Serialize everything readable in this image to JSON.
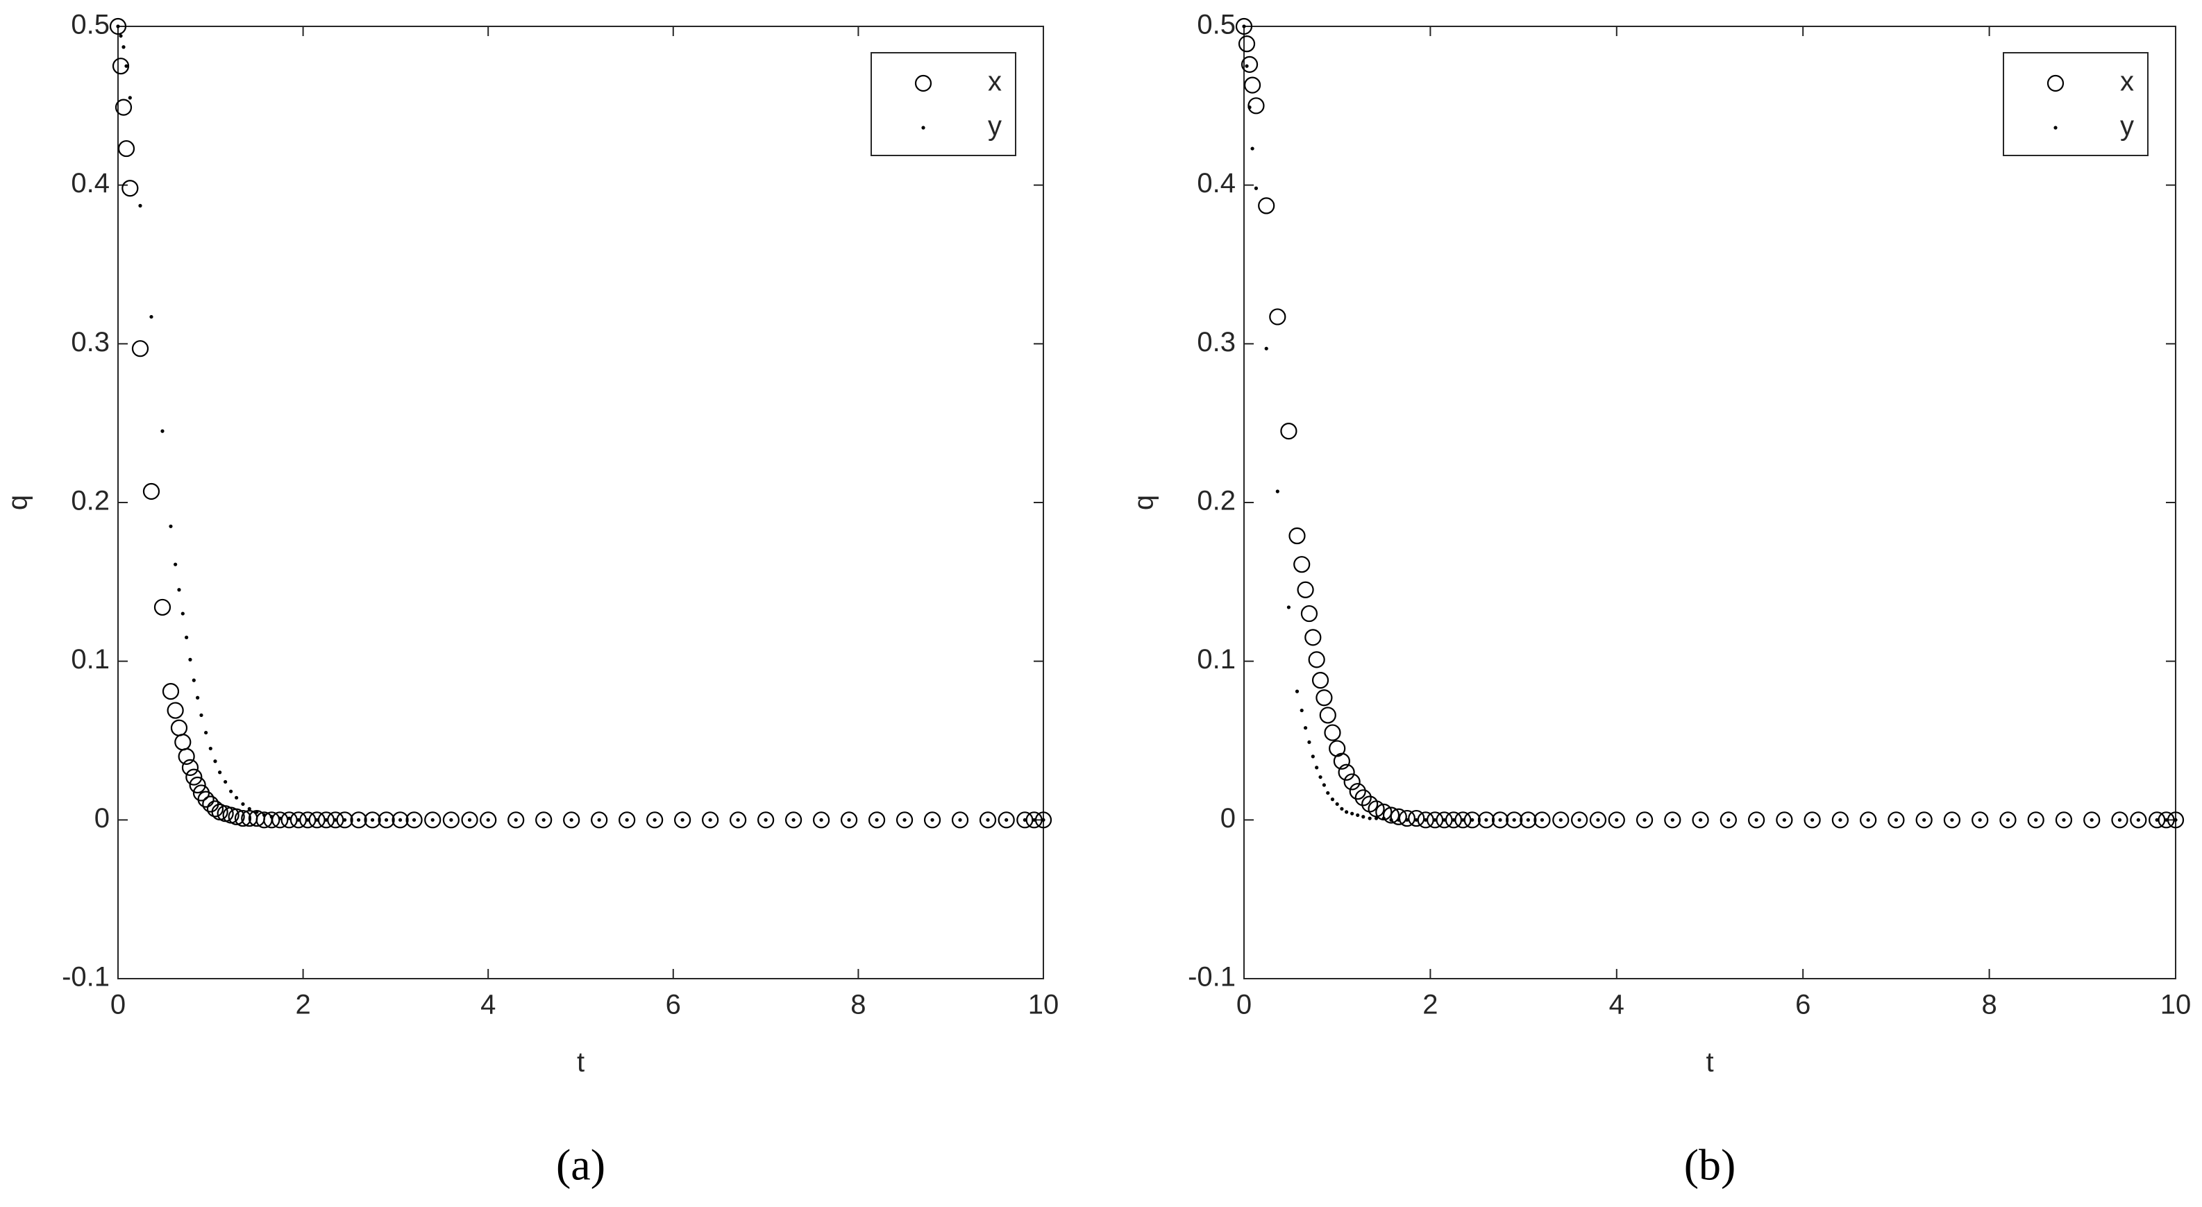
{
  "chart_data": [
    {
      "type": "scatter",
      "label": "(a)",
      "x_label": "t",
      "y_label": "q",
      "x": [
        0,
        0.03,
        0.06,
        0.09,
        0.13,
        0.24,
        0.36,
        0.48,
        0.57,
        0.62,
        0.66,
        0.7,
        0.74,
        0.78,
        0.82,
        0.86,
        0.9,
        0.95,
        1.0,
        1.05,
        1.1,
        1.16,
        1.22,
        1.28,
        1.35,
        1.42,
        1.5,
        1.58,
        1.66,
        1.75,
        1.85,
        1.95,
        2.05,
        2.15,
        2.25,
        2.35,
        2.45,
        2.6,
        2.75,
        2.9,
        3.05,
        3.2,
        3.4,
        3.6,
        3.8,
        4.0,
        4.3,
        4.6,
        4.9,
        5.2,
        5.5,
        5.8,
        6.1,
        6.4,
        6.7,
        7.0,
        7.3,
        7.6,
        7.9,
        8.2,
        8.5,
        8.8,
        9.1,
        9.4,
        9.6,
        9.8,
        9.9,
        10
      ],
      "series": [
        {
          "name": "x",
          "marker": "circle",
          "color": "#000000",
          "values": [
            0.5,
            0.475,
            0.449,
            0.423,
            0.398,
            0.297,
            0.207,
            0.134,
            0.081,
            0.069,
            0.058,
            0.049,
            0.04,
            0.033,
            0.027,
            0.022,
            0.017,
            0.013,
            0.01,
            0.007,
            0.005,
            0.004,
            0.003,
            0.002,
            0.001,
            0.001,
            0.001,
            0,
            0,
            0,
            0,
            0,
            0,
            0,
            0,
            0,
            0,
            0,
            0,
            0,
            0,
            0,
            0,
            0,
            0,
            0,
            0,
            0,
            0,
            0,
            0,
            0,
            0,
            0,
            0,
            0,
            0,
            0,
            0,
            0,
            0,
            0,
            0,
            0,
            0,
            0,
            0,
            0
          ]
        },
        {
          "name": "y",
          "marker": "dot",
          "color": "#000000",
          "values": [
            0.5,
            0.494,
            0.487,
            0.475,
            0.455,
            0.387,
            0.317,
            0.245,
            0.185,
            0.161,
            0.145,
            0.13,
            0.115,
            0.101,
            0.088,
            0.077,
            0.066,
            0.055,
            0.045,
            0.037,
            0.03,
            0.024,
            0.018,
            0.014,
            0.01,
            0.007,
            0.005,
            0.003,
            0.002,
            0.001,
            0.001,
            0,
            0,
            0,
            0,
            0,
            0,
            0,
            0,
            0,
            0,
            0,
            0,
            0,
            0,
            0,
            0,
            0,
            0,
            0,
            0,
            0,
            0,
            0,
            0,
            0,
            0,
            0,
            0,
            0,
            0,
            0,
            0,
            0,
            0,
            0,
            0,
            0
          ]
        }
      ],
      "xlim": [
        0,
        10
      ],
      "xticks": [
        0,
        2,
        4,
        6,
        8,
        10
      ],
      "ylim": [
        -0.1,
        0.5
      ],
      "yticks": [
        -0.1,
        0,
        0.1,
        0.2,
        0.3,
        0.4,
        0.5
      ],
      "legend": "northeast"
    },
    {
      "type": "scatter",
      "label": "(b)",
      "x_label": "t",
      "y_label": "q",
      "x": [
        0,
        0.03,
        0.06,
        0.09,
        0.13,
        0.24,
        0.36,
        0.48,
        0.57,
        0.62,
        0.66,
        0.7,
        0.74,
        0.78,
        0.82,
        0.86,
        0.9,
        0.95,
        1.0,
        1.05,
        1.1,
        1.16,
        1.22,
        1.28,
        1.35,
        1.42,
        1.5,
        1.58,
        1.66,
        1.75,
        1.85,
        1.95,
        2.05,
        2.15,
        2.25,
        2.35,
        2.45,
        2.6,
        2.75,
        2.9,
        3.05,
        3.2,
        3.4,
        3.6,
        3.8,
        4.0,
        4.3,
        4.6,
        4.9,
        5.2,
        5.5,
        5.8,
        6.1,
        6.4,
        6.7,
        7.0,
        7.3,
        7.6,
        7.9,
        8.2,
        8.5,
        8.8,
        9.1,
        9.4,
        9.6,
        9.8,
        9.9,
        10
      ],
      "series": [
        {
          "name": "x",
          "marker": "circle",
          "color": "#000000",
          "values": [
            0.5,
            0.489,
            0.476,
            0.463,
            0.45,
            0.387,
            0.317,
            0.245,
            0.179,
            0.161,
            0.145,
            0.13,
            0.115,
            0.101,
            0.088,
            0.077,
            0.066,
            0.055,
            0.045,
            0.037,
            0.03,
            0.024,
            0.018,
            0.014,
            0.01,
            0.007,
            0.005,
            0.003,
            0.002,
            0.001,
            0.001,
            0,
            0,
            0,
            0,
            0,
            0,
            0,
            0,
            0,
            0,
            0,
            0,
            0,
            0,
            0,
            0,
            0,
            0,
            0,
            0,
            0,
            0,
            0,
            0,
            0,
            0,
            0,
            0,
            0,
            0,
            0,
            0,
            0,
            0,
            0,
            0,
            0
          ]
        },
        {
          "name": "y",
          "marker": "dot",
          "color": "#000000",
          "values": [
            0.5,
            0.475,
            0.449,
            0.423,
            0.398,
            0.297,
            0.207,
            0.134,
            0.081,
            0.069,
            0.058,
            0.049,
            0.04,
            0.033,
            0.027,
            0.022,
            0.017,
            0.013,
            0.01,
            0.007,
            0.005,
            0.004,
            0.003,
            0.002,
            0.001,
            0.001,
            0.001,
            0,
            0,
            0,
            0,
            0,
            0,
            0,
            0,
            0,
            0,
            0,
            0,
            0,
            0,
            0,
            0,
            0,
            0,
            0,
            0,
            0,
            0,
            0,
            0,
            0,
            0,
            0,
            0,
            0,
            0,
            0,
            0,
            0,
            0,
            0,
            0,
            0,
            0,
            0,
            0,
            0
          ]
        }
      ],
      "xlim": [
        0,
        10
      ],
      "xticks": [
        0,
        2,
        4,
        6,
        8,
        10
      ],
      "ylim": [
        -0.1,
        0.5
      ],
      "yticks": [
        -0.1,
        0,
        0.1,
        0.2,
        0.3,
        0.4,
        0.5
      ],
      "legend": "northeast"
    }
  ]
}
